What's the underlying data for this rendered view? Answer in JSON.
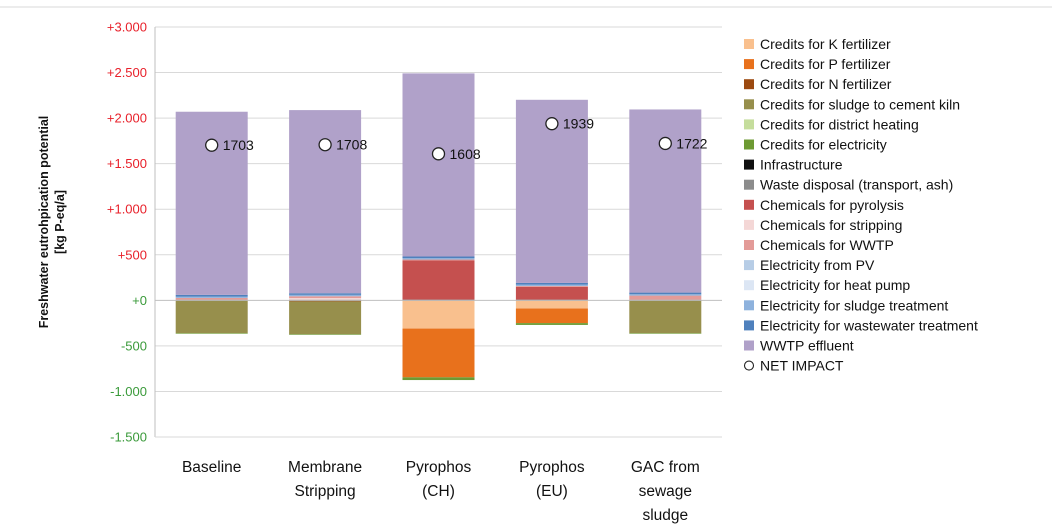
{
  "chart_data": {
    "type": "bar",
    "stacked": true,
    "title": "",
    "ylabel": [
      "Freshwater eutrohpication potential",
      "[kg P-eq/a]"
    ],
    "ylim": [
      -1500,
      3000
    ],
    "yticks": [
      3000,
      2500,
      2000,
      1500,
      1000,
      500,
      0,
      -500,
      -1000,
      -1500
    ],
    "ytick_labels": [
      "+3.000",
      "+2.500",
      "+2.000",
      "+1.500",
      "+1.000",
      "+500",
      "+0",
      "-500",
      "-1.000",
      "-1.500"
    ],
    "ytick_colors": {
      "positive": "#e8202a",
      "zero": "#3a9a3a",
      "negative": "#3a9a3a"
    },
    "grid": true,
    "legend_position": "right",
    "categories": [
      [
        "Baseline"
      ],
      [
        "Membrane",
        "Stripping"
      ],
      [
        "Pyrophos",
        "(CH)"
      ],
      [
        "Pyrophos",
        "(EU)"
      ],
      [
        "GAC from",
        "sewage",
        "sludge"
      ]
    ],
    "series": [
      {
        "name": "Credits for K fertilizer",
        "color": "#f9c08e",
        "values": [
          0,
          0,
          -310,
          -90,
          0
        ]
      },
      {
        "name": "Credits for P fertilizer",
        "color": "#e8711c",
        "values": [
          0,
          0,
          -535,
          -160,
          0
        ]
      },
      {
        "name": "Credits for N fertilizer",
        "color": "#9c4a10",
        "values": [
          0,
          -12,
          0,
          0,
          0
        ]
      },
      {
        "name": "Credits for sludge to cement kiln",
        "color": "#978f4c",
        "values": [
          -360,
          -360,
          0,
          0,
          -360
        ]
      },
      {
        "name": "Credits for district heating",
        "color": "#c5dd9c",
        "values": [
          0,
          0,
          0,
          0,
          0
        ]
      },
      {
        "name": "Credits for electricity",
        "color": "#6d9a33",
        "values": [
          -5,
          -5,
          -30,
          -20,
          -5
        ]
      },
      {
        "name": "Infrastructure",
        "color": "#111111",
        "values": [
          3,
          3,
          3,
          3,
          3
        ]
      },
      {
        "name": "Waste disposal (transport, ash)",
        "color": "#8c8c8c",
        "values": [
          4,
          4,
          5,
          5,
          4
        ]
      },
      {
        "name": "Chemicals for pyrolysis",
        "color": "#c5504f",
        "values": [
          0,
          0,
          430,
          140,
          0
        ]
      },
      {
        "name": "Chemicals for stripping",
        "color": "#f4d7d6",
        "values": [
          0,
          18,
          0,
          0,
          0
        ]
      },
      {
        "name": "Chemicals for WWTP",
        "color": "#e39b98",
        "values": [
          20,
          20,
          10,
          10,
          45
        ]
      },
      {
        "name": "Electricity from PV",
        "color": "#b7cde6",
        "values": [
          0,
          0,
          0,
          0,
          0
        ]
      },
      {
        "name": "Electricity for heat pump",
        "color": "#dce6f4",
        "values": [
          0,
          0,
          0,
          0,
          0
        ]
      },
      {
        "name": "Electricity for sludge treatment",
        "color": "#8eb2dd",
        "values": [
          15,
          15,
          15,
          15,
          15
        ]
      },
      {
        "name": "Electricity for wastewater treatment",
        "color": "#4f81bd",
        "values": [
          18,
          18,
          18,
          18,
          18
        ]
      },
      {
        "name": "WWTP effluent",
        "color": "#b0a1c9",
        "values": [
          2010,
          2010,
          2010,
          2010,
          2010
        ]
      }
    ],
    "net_impact": {
      "name": "NET IMPACT",
      "values": [
        1703,
        1708,
        1608,
        1939,
        1722
      ],
      "labels": [
        "1703",
        "1708",
        "1608",
        "1939",
        "1722"
      ]
    }
  }
}
